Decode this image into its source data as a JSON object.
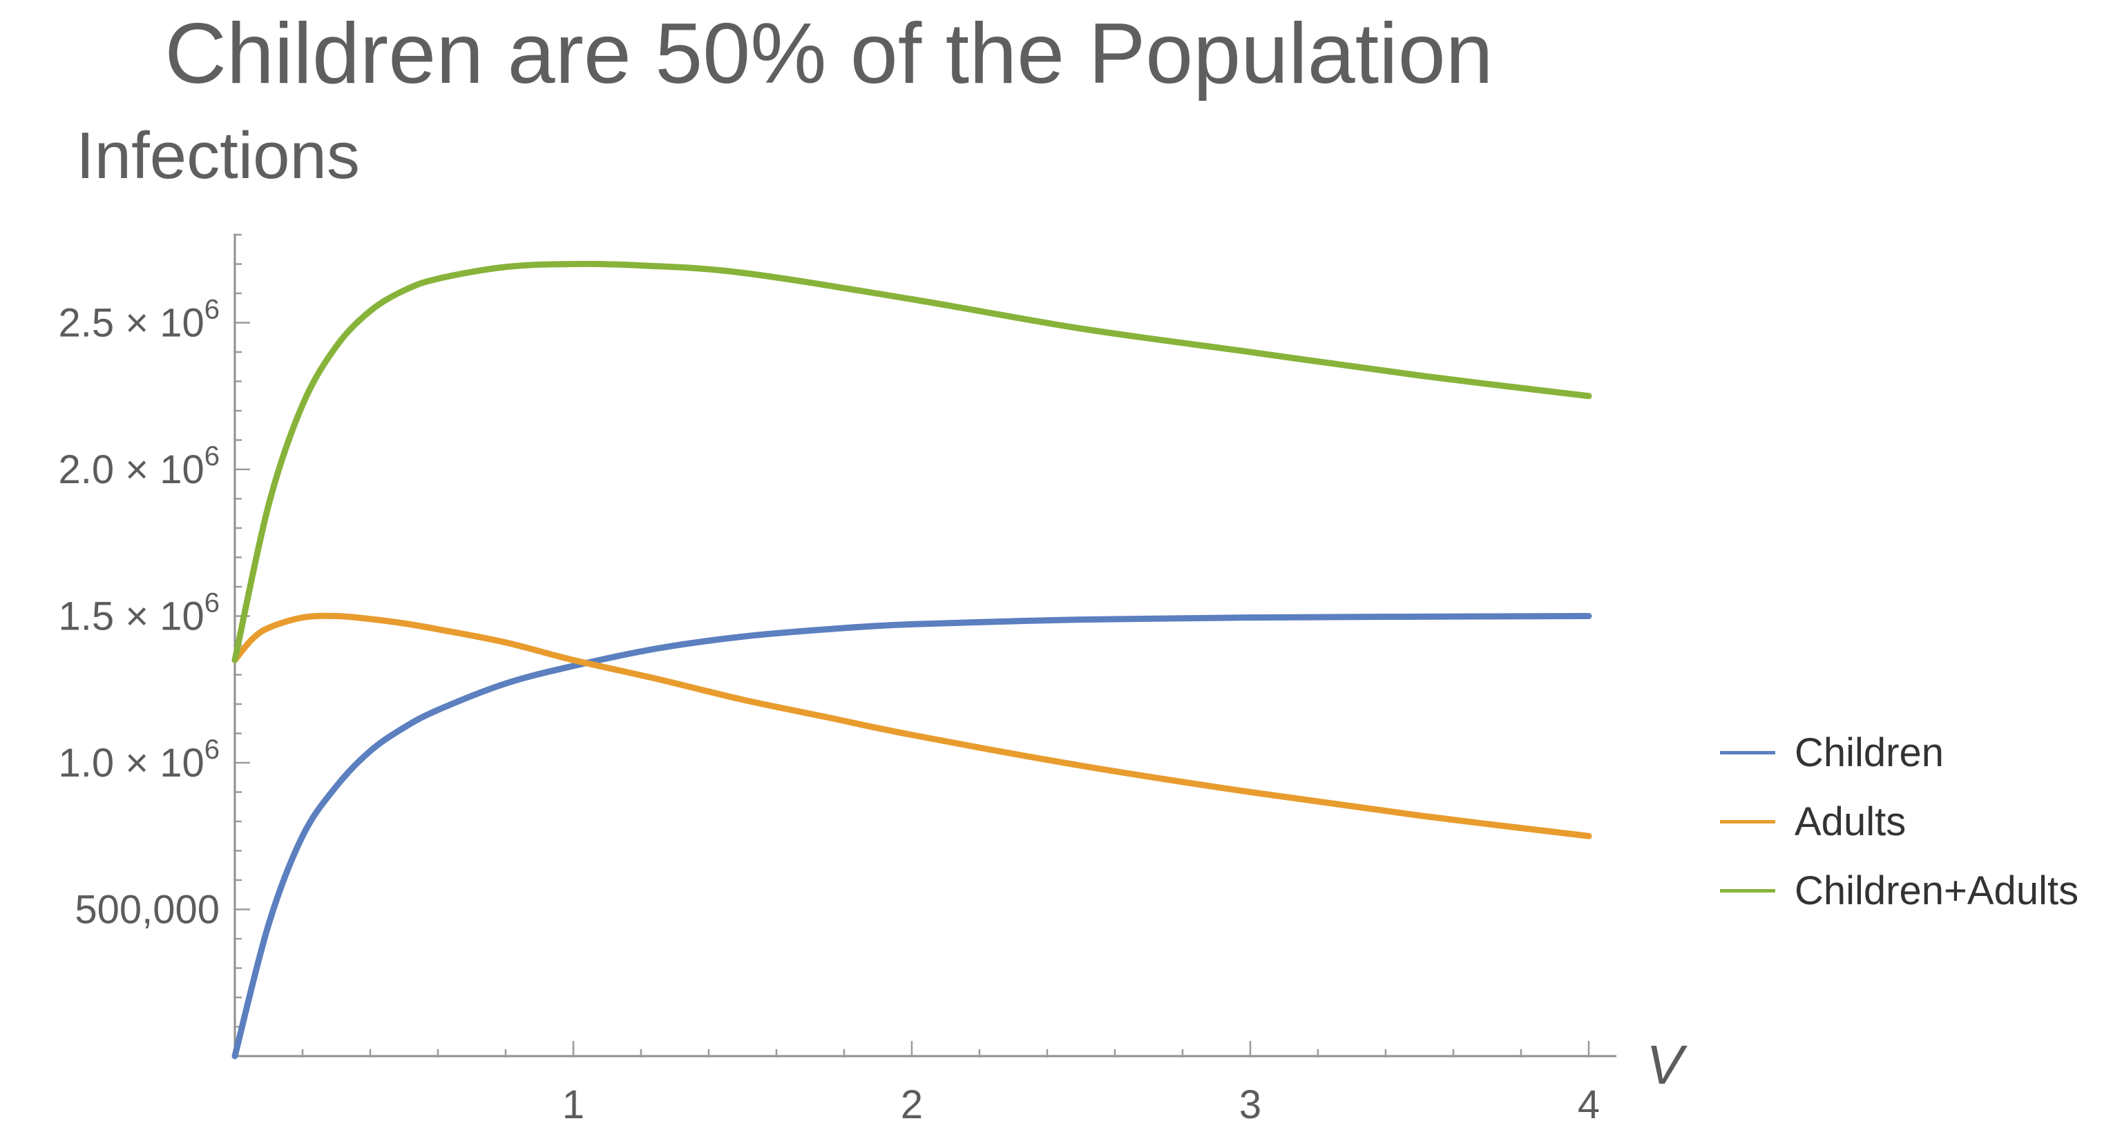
{
  "chart_data": {
    "type": "line",
    "title": "Children are 50% of the Population",
    "ylabel": "Infections",
    "xlabel": "V",
    "xlim": [
      0,
      4
    ],
    "ylim": [
      0,
      2800000
    ],
    "x_ticks": [
      {
        "value": 1,
        "label": "1"
      },
      {
        "value": 2,
        "label": "2"
      },
      {
        "value": 3,
        "label": "3"
      },
      {
        "value": 4,
        "label": "4"
      }
    ],
    "y_ticks": [
      {
        "value": 500000,
        "label": "500,000"
      },
      {
        "value": 1000000,
        "mantissa": "1.0",
        "times": "×",
        "base": "10",
        "exponent": "6"
      },
      {
        "value": 1500000,
        "mantissa": "1.5",
        "times": "×",
        "base": "10",
        "exponent": "6"
      },
      {
        "value": 2000000,
        "mantissa": "2.0",
        "times": "×",
        "base": "10",
        "exponent": "6"
      },
      {
        "value": 2500000,
        "mantissa": "2.5",
        "times": "×",
        "base": "10",
        "exponent": "6"
      }
    ],
    "grid": false,
    "legend_position": "right",
    "series": [
      {
        "name": "Children",
        "color": "#5b7fbf",
        "x": [
          0,
          0.1,
          0.2,
          0.3,
          0.4,
          0.5,
          0.6,
          0.8,
          1.0,
          1.25,
          1.5,
          1.75,
          2.0,
          2.5,
          3.0,
          3.5,
          4.0
        ],
        "y": [
          0,
          450000,
          750000,
          920000,
          1040000,
          1120000,
          1180000,
          1270000,
          1330000,
          1390000,
          1430000,
          1455000,
          1472000,
          1488000,
          1495000,
          1498000,
          1500000
        ]
      },
      {
        "name": "Adults",
        "color": "#e89c2e",
        "x": [
          0,
          0.05,
          0.1,
          0.2,
          0.3,
          0.4,
          0.5,
          0.6,
          0.8,
          1.0,
          1.25,
          1.5,
          1.75,
          2.0,
          2.5,
          3.0,
          3.5,
          4.0
        ],
        "y": [
          1350000,
          1420000,
          1460000,
          1495000,
          1500000,
          1490000,
          1475000,
          1455000,
          1410000,
          1350000,
          1285000,
          1215000,
          1155000,
          1095000,
          990000,
          900000,
          820000,
          750000
        ]
      },
      {
        "name": "Children+Adults",
        "color": "#87b33a",
        "x": [
          0,
          0.1,
          0.2,
          0.3,
          0.4,
          0.5,
          0.6,
          0.8,
          1.0,
          1.2,
          1.5,
          2.0,
          2.5,
          3.0,
          3.5,
          4.0
        ],
        "y": [
          1350000,
          1880000,
          2220000,
          2420000,
          2540000,
          2610000,
          2650000,
          2690000,
          2700000,
          2695000,
          2670000,
          2580000,
          2480000,
          2400000,
          2320000,
          2250000
        ]
      }
    ]
  }
}
